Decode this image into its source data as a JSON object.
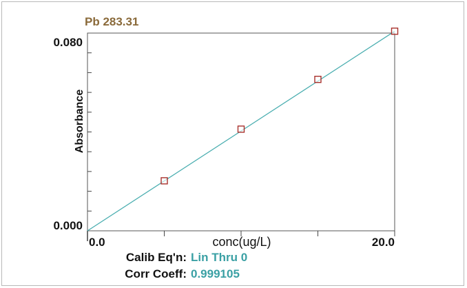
{
  "chart_data": {
    "type": "scatter",
    "title": "Pb 283.31",
    "xlabel": "conc(ug/L)",
    "ylabel": "Absorbance",
    "x_tick_labels": [
      "0.0",
      "20.0"
    ],
    "y_tick_labels": [
      "0.000",
      "0.080"
    ],
    "xlim": [
      0,
      20
    ],
    "ylim": [
      0,
      0.085
    ],
    "series": [
      {
        "x": [
          5,
          10,
          15,
          20
        ],
        "y": [
          0.0215,
          0.0437,
          0.0651,
          0.0858
        ]
      }
    ],
    "fit_line": {
      "x": [
        0,
        20
      ],
      "y": [
        0,
        0.0858
      ]
    },
    "calib": {
      "label": "Calib Eq'n:",
      "value": "Lin Thru 0"
    },
    "corr": {
      "label": "Corr Coeff:",
      "value": "0.999105"
    },
    "colors": {
      "title": "#8a6a3a",
      "line": "#4aaeb0",
      "marker": "#a8302c",
      "value_text": "#3aa0a4",
      "axis": "#333333"
    }
  }
}
